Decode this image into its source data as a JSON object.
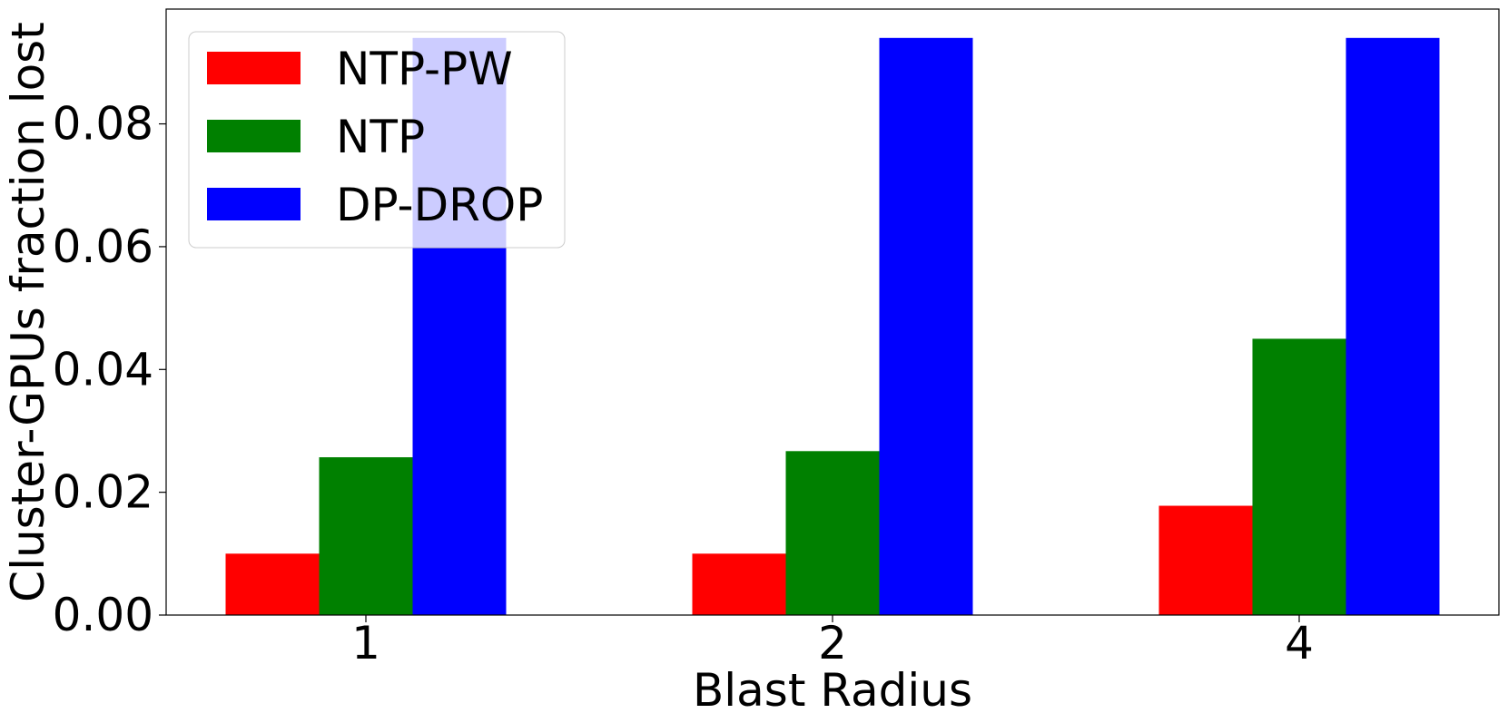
{
  "chart_data": {
    "type": "bar",
    "categories": [
      "1",
      "2",
      "4"
    ],
    "series": [
      {
        "name": "NTP-PW",
        "color": "#ff0000",
        "values": [
          0.01,
          0.01,
          0.0178
        ]
      },
      {
        "name": "NTP",
        "color": "#008000",
        "values": [
          0.0257,
          0.0267,
          0.045
        ]
      },
      {
        "name": "DP-DROP",
        "color": "#0000ff",
        "values": [
          0.094,
          0.094,
          0.094
        ]
      }
    ],
    "title": "",
    "xlabel": "Blast Radius",
    "ylabel": "Cluster-GPUs fraction lost",
    "ylim": [
      0,
      0.0987
    ],
    "yticks": [
      "0.00",
      "0.02",
      "0.04",
      "0.06",
      "0.08"
    ],
    "grid": false,
    "legend_position": "upper-left"
  }
}
